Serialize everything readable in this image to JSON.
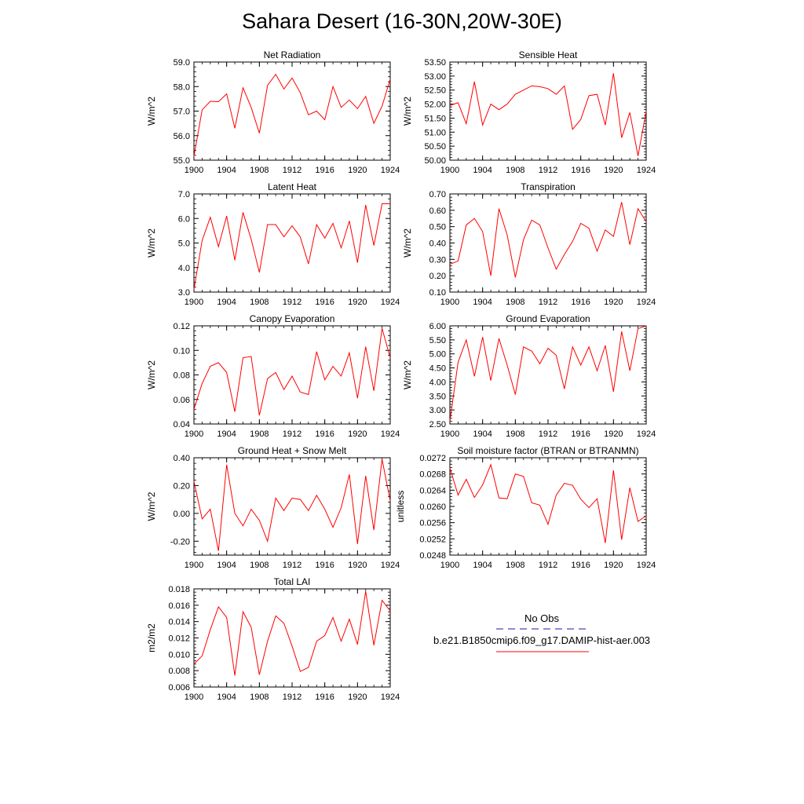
{
  "title": "Sahara Desert (16-30N,20W-30E)",
  "colors": {
    "model": "#ff0000",
    "obs": "#1a1aa6",
    "axis": "#000000"
  },
  "legend": {
    "obs_label": "No Obs",
    "model_label": "b.e21.B1850cmip6.f09_g17.DAMIP-hist-aer.003"
  },
  "chart_data": [
    {
      "type": "line",
      "title": "Net Radiation",
      "ylabel": "W/m^2",
      "xlim": [
        1900,
        1924
      ],
      "ylim": [
        55.0,
        59.0
      ],
      "xticks": [
        1900,
        1904,
        1908,
        1912,
        1916,
        1920,
        1924
      ],
      "yticks": [
        55.0,
        56.0,
        57.0,
        58.0,
        59.0
      ],
      "ytick_labels": [
        "55.0",
        "56.0",
        "57.0",
        "58.0",
        "59.0"
      ],
      "x": [
        1900,
        1901,
        1902,
        1903,
        1904,
        1905,
        1906,
        1907,
        1908,
        1909,
        1910,
        1911,
        1912,
        1913,
        1914,
        1915,
        1916,
        1917,
        1918,
        1919,
        1920,
        1921,
        1922,
        1923,
        1924
      ],
      "series": [
        {
          "values": [
            55.15,
            57.05,
            57.4,
            57.38,
            57.7,
            56.3,
            57.95,
            57.15,
            56.1,
            58.05,
            58.5,
            57.9,
            58.35,
            57.75,
            56.85,
            57.0,
            56.65,
            58.0,
            57.15,
            57.45,
            57.1,
            57.6,
            56.5,
            57.2,
            58.3
          ]
        }
      ]
    },
    {
      "type": "line",
      "title": "Sensible Heat",
      "ylabel": "W/m^2",
      "xlim": [
        1900,
        1924
      ],
      "ylim": [
        50.0,
        53.5
      ],
      "xticks": [
        1900,
        1904,
        1908,
        1912,
        1916,
        1920,
        1924
      ],
      "yticks": [
        50.0,
        50.5,
        51.0,
        51.5,
        52.0,
        52.5,
        53.0,
        53.5
      ],
      "ytick_labels": [
        "50.00",
        "50.50",
        "51.00",
        "51.50",
        "52.00",
        "52.50",
        "53.00",
        "53.50"
      ],
      "x": [
        1900,
        1901,
        1902,
        1903,
        1904,
        1905,
        1906,
        1907,
        1908,
        1909,
        1910,
        1911,
        1912,
        1913,
        1914,
        1915,
        1916,
        1917,
        1918,
        1919,
        1920,
        1921,
        1922,
        1923,
        1924
      ],
      "series": [
        {
          "values": [
            51.95,
            52.05,
            51.3,
            52.8,
            51.25,
            52.0,
            51.8,
            52.0,
            52.35,
            52.5,
            52.65,
            52.62,
            52.55,
            52.35,
            52.65,
            51.1,
            51.45,
            52.3,
            52.35,
            51.25,
            53.1,
            50.8,
            51.7,
            50.15,
            51.75
          ]
        }
      ]
    },
    {
      "type": "line",
      "title": "Latent Heat",
      "ylabel": "W/m^2",
      "xlim": [
        1900,
        1924
      ],
      "ylim": [
        3.0,
        7.0
      ],
      "xticks": [
        1900,
        1904,
        1908,
        1912,
        1916,
        1920,
        1924
      ],
      "yticks": [
        3.0,
        4.0,
        5.0,
        6.0,
        7.0
      ],
      "ytick_labels": [
        "3.0",
        "4.0",
        "5.0",
        "6.0",
        "7.0"
      ],
      "x": [
        1900,
        1901,
        1902,
        1903,
        1904,
        1905,
        1906,
        1907,
        1908,
        1909,
        1910,
        1911,
        1912,
        1913,
        1914,
        1915,
        1916,
        1917,
        1918,
        1919,
        1920,
        1921,
        1922,
        1923,
        1924
      ],
      "series": [
        {
          "values": [
            3.1,
            5.1,
            6.05,
            4.85,
            6.1,
            4.3,
            6.25,
            5.15,
            3.8,
            5.75,
            5.75,
            5.25,
            5.7,
            5.25,
            4.15,
            5.75,
            5.2,
            5.8,
            4.8,
            5.9,
            4.2,
            6.55,
            4.9,
            6.6,
            6.6
          ]
        }
      ]
    },
    {
      "type": "line",
      "title": "Transpiration",
      "ylabel": "W/m^2",
      "xlim": [
        1900,
        1924
      ],
      "ylim": [
        0.1,
        0.7
      ],
      "xticks": [
        1900,
        1904,
        1908,
        1912,
        1916,
        1920,
        1924
      ],
      "yticks": [
        0.1,
        0.2,
        0.3,
        0.4,
        0.5,
        0.6,
        0.7
      ],
      "ytick_labels": [
        "0.10",
        "0.20",
        "0.30",
        "0.40",
        "0.50",
        "0.60",
        "0.70"
      ],
      "x": [
        1900,
        1901,
        1902,
        1903,
        1904,
        1905,
        1906,
        1907,
        1908,
        1909,
        1910,
        1911,
        1912,
        1913,
        1914,
        1915,
        1916,
        1917,
        1918,
        1919,
        1920,
        1921,
        1922,
        1923,
        1924
      ],
      "series": [
        {
          "values": [
            0.27,
            0.29,
            0.51,
            0.55,
            0.47,
            0.2,
            0.61,
            0.45,
            0.19,
            0.42,
            0.54,
            0.51,
            0.37,
            0.24,
            0.33,
            0.41,
            0.52,
            0.49,
            0.35,
            0.48,
            0.44,
            0.65,
            0.39,
            0.61,
            0.53
          ]
        }
      ]
    },
    {
      "type": "line",
      "title": "Canopy Evaporation",
      "ylabel": "W/m^2",
      "xlim": [
        1900,
        1924
      ],
      "ylim": [
        0.04,
        0.12
      ],
      "xticks": [
        1900,
        1904,
        1908,
        1912,
        1916,
        1920,
        1924
      ],
      "yticks": [
        0.04,
        0.06,
        0.08,
        0.1,
        0.12
      ],
      "ytick_labels": [
        "0.04",
        "0.06",
        "0.08",
        "0.10",
        "0.12"
      ],
      "x": [
        1900,
        1901,
        1902,
        1903,
        1904,
        1905,
        1906,
        1907,
        1908,
        1909,
        1910,
        1911,
        1912,
        1913,
        1914,
        1915,
        1916,
        1917,
        1918,
        1919,
        1920,
        1921,
        1922,
        1923,
        1924
      ],
      "series": [
        {
          "values": [
            0.052,
            0.073,
            0.087,
            0.09,
            0.082,
            0.05,
            0.094,
            0.095,
            0.047,
            0.077,
            0.082,
            0.068,
            0.079,
            0.066,
            0.064,
            0.099,
            0.076,
            0.087,
            0.079,
            0.098,
            0.061,
            0.103,
            0.067,
            0.118,
            0.094
          ]
        }
      ]
    },
    {
      "type": "line",
      "title": "Ground Evaporation",
      "ylabel": "W/m^2",
      "xlim": [
        1900,
        1924
      ],
      "ylim": [
        2.5,
        6.0
      ],
      "xticks": [
        1900,
        1904,
        1908,
        1912,
        1916,
        1920,
        1924
      ],
      "yticks": [
        2.5,
        3.0,
        3.5,
        4.0,
        4.5,
        5.0,
        5.5,
        6.0
      ],
      "ytick_labels": [
        "2.50",
        "3.00",
        "3.50",
        "4.00",
        "4.50",
        "5.00",
        "5.50",
        "6.00"
      ],
      "x": [
        1900,
        1901,
        1902,
        1903,
        1904,
        1905,
        1906,
        1907,
        1908,
        1909,
        1910,
        1911,
        1912,
        1913,
        1914,
        1915,
        1916,
        1917,
        1918,
        1919,
        1920,
        1921,
        1922,
        1923,
        1924
      ],
      "series": [
        {
          "values": [
            2.6,
            4.7,
            5.5,
            4.2,
            5.6,
            4.05,
            5.55,
            4.6,
            3.55,
            5.25,
            5.1,
            4.65,
            5.2,
            4.95,
            3.75,
            5.25,
            4.6,
            5.25,
            4.4,
            5.3,
            3.65,
            5.8,
            4.4,
            5.9,
            6.0
          ]
        }
      ]
    },
    {
      "type": "line",
      "title": "Ground Heat + Snow Melt",
      "ylabel": "W/m^2",
      "xlim": [
        1900,
        1924
      ],
      "ylim": [
        -0.3,
        0.4
      ],
      "xticks": [
        1900,
        1904,
        1908,
        1912,
        1916,
        1920,
        1924
      ],
      "yticks": [
        -0.2,
        0.0,
        0.2,
        0.4
      ],
      "ytick_labels": [
        "-0.20",
        "0.00",
        "0.20",
        "0.40"
      ],
      "x": [
        1900,
        1901,
        1902,
        1903,
        1904,
        1905,
        1906,
        1907,
        1908,
        1909,
        1910,
        1911,
        1912,
        1913,
        1914,
        1915,
        1916,
        1917,
        1918,
        1919,
        1920,
        1921,
        1922,
        1923,
        1924
      ],
      "series": [
        {
          "values": [
            0.23,
            -0.04,
            0.03,
            -0.27,
            0.35,
            0.0,
            -0.09,
            0.03,
            -0.05,
            -0.2,
            0.11,
            0.02,
            0.11,
            0.1,
            0.02,
            0.13,
            0.03,
            -0.1,
            0.04,
            0.28,
            -0.22,
            0.27,
            -0.12,
            0.39,
            0.09
          ]
        }
      ]
    },
    {
      "type": "line",
      "title": "Soil moisture factor (BTRAN or BTRANMN)",
      "ylabel": "unitless",
      "xlim": [
        1900,
        1924
      ],
      "ylim": [
        0.0248,
        0.0272
      ],
      "xticks": [
        1900,
        1904,
        1908,
        1912,
        1916,
        1920,
        1924
      ],
      "yticks": [
        0.0248,
        0.0252,
        0.0256,
        0.026,
        0.0264,
        0.0268,
        0.0272
      ],
      "ytick_labels": [
        "0.0248",
        "0.0252",
        "0.0256",
        "0.0260",
        "0.0264",
        "0.0268",
        "0.0272"
      ],
      "x": [
        1900,
        1901,
        1902,
        1903,
        1904,
        1905,
        1906,
        1907,
        1908,
        1909,
        1910,
        1911,
        1912,
        1913,
        1914,
        1915,
        1916,
        1917,
        1918,
        1919,
        1920,
        1921,
        1922,
        1923,
        1924
      ],
      "series": [
        {
          "values": [
            0.02695,
            0.02628,
            0.02667,
            0.02622,
            0.02653,
            0.02703,
            0.02621,
            0.02619,
            0.0268,
            0.02674,
            0.02609,
            0.02603,
            0.02556,
            0.02628,
            0.02657,
            0.02652,
            0.02618,
            0.02597,
            0.02619,
            0.0251,
            0.02689,
            0.02518,
            0.02646,
            0.02563,
            0.02577
          ]
        }
      ]
    },
    {
      "type": "line",
      "title": "Total LAI",
      "ylabel": "m2/m2",
      "xlim": [
        1900,
        1924
      ],
      "ylim": [
        0.006,
        0.018
      ],
      "xticks": [
        1900,
        1904,
        1908,
        1912,
        1916,
        1920,
        1924
      ],
      "yticks": [
        0.006,
        0.008,
        0.01,
        0.012,
        0.014,
        0.016,
        0.018
      ],
      "ytick_labels": [
        "0.006",
        "0.008",
        "0.010",
        "0.012",
        "0.014",
        "0.016",
        "0.018"
      ],
      "x": [
        1900,
        1901,
        1902,
        1903,
        1904,
        1905,
        1906,
        1907,
        1908,
        1909,
        1910,
        1911,
        1912,
        1913,
        1914,
        1915,
        1916,
        1917,
        1918,
        1919,
        1920,
        1921,
        1922,
        1923,
        1924
      ],
      "series": [
        {
          "values": [
            0.0088,
            0.0098,
            0.013,
            0.0158,
            0.0145,
            0.0074,
            0.0152,
            0.0133,
            0.0075,
            0.0116,
            0.0147,
            0.0138,
            0.011,
            0.0079,
            0.0084,
            0.0116,
            0.0123,
            0.0145,
            0.0116,
            0.0143,
            0.0112,
            0.0177,
            0.0111,
            0.0166,
            0.0153
          ]
        }
      ]
    }
  ]
}
